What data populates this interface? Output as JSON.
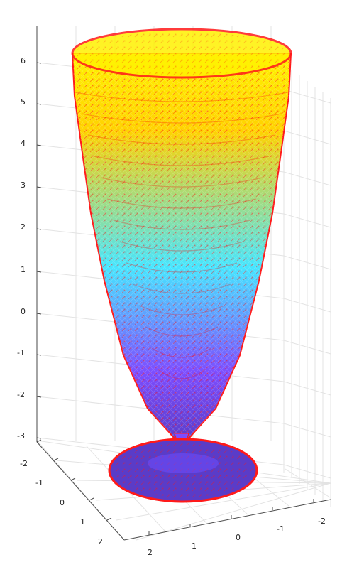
{
  "chart_data": {
    "type": "3d-surface-vector-field",
    "title": "",
    "xlabel": "",
    "ylabel": "",
    "zlabel": "",
    "grid": true,
    "z_ticks": [
      "6",
      "5",
      "4",
      "3",
      "2",
      "1",
      "0",
      "-1",
      "-2",
      "-3"
    ],
    "y_ticks": [
      "-2",
      "-1",
      "0",
      "1",
      "2"
    ],
    "x_ticks": [
      "2",
      "1",
      "0",
      "-1",
      "-2"
    ],
    "colors": {
      "top": "#fff200",
      "upper": "#ffd200",
      "middle": "#46e6ff",
      "lower": "#7c4dff",
      "base": "#5a3cc8",
      "arrow": "#ff1a1a",
      "grid": "#e3e3e3",
      "axis": "#4a4a4a"
    },
    "shape": {
      "profile": [
        {
          "z": 6.5,
          "radius": 2.6
        },
        {
          "z": 5.0,
          "radius": 2.45
        },
        {
          "z": 3.0,
          "radius": 2.05
        },
        {
          "z": 1.0,
          "radius": 1.55
        },
        {
          "z": 0.0,
          "radius": 1.15
        },
        {
          "z": -1.0,
          "radius": 0.75
        },
        {
          "z": -2.0,
          "radius": 0.35
        },
        {
          "z": -2.8,
          "radius": 0.05
        },
        {
          "z": -3.0,
          "radius": 1.6
        }
      ]
    }
  }
}
